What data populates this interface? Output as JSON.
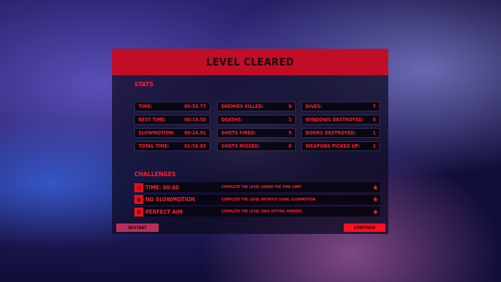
{
  "title": "LEVEL CLEARED",
  "stats_label": "STATS",
  "stats": [
    [
      {
        "label": "TIME:",
        "value": "00:53.77"
      },
      {
        "label": "BEST TIME:",
        "value": "00:19.50"
      },
      {
        "label": "SLOWMOTION:",
        "value": "00:24.91"
      },
      {
        "label": "TOTAL TIME:",
        "value": "01:56.83"
      }
    ],
    [
      {
        "label": "ENEMIES KILLED:",
        "value": "9"
      },
      {
        "label": "DEATHS:",
        "value": "1"
      },
      {
        "label": "SHOTS FIRED:",
        "value": "9"
      },
      {
        "label": "SHOTS MISSED:",
        "value": "0"
      }
    ],
    [
      {
        "label": "DIVES:",
        "value": "7"
      },
      {
        "label": "WINDOWS DESTROYED:",
        "value": "0"
      },
      {
        "label": "DOORS DESTROYED:",
        "value": "1"
      },
      {
        "label": "WEAPONS PICKED UP:",
        "value": "1"
      }
    ]
  ],
  "challenges_label": "CHALLENGES",
  "challenges": [
    {
      "icon": "stopwatch-icon",
      "name": "TIME: 00:40",
      "desc": "COMPLETE THE LEVEL UNDER THE TIME LIMIT",
      "star": "★"
    },
    {
      "icon": "slowmotion-icon",
      "name": "NO SLOWMOTION",
      "desc": "COMPLETE THE LEVEL WITHOUT USING SLOWMOTION",
      "star": "★"
    },
    {
      "icon": "crosshair-icon",
      "name": "PERFECT AIM",
      "desc": "COMPLETE THE LEVEL ONLY HITTING ENEMIES",
      "star": "★"
    }
  ],
  "buttons": {
    "restart": "RESTART",
    "continue": "CONTINUE"
  },
  "colors": {
    "accent": "#e5101f",
    "header": "#c20d26",
    "restart": "#b8305a"
  }
}
